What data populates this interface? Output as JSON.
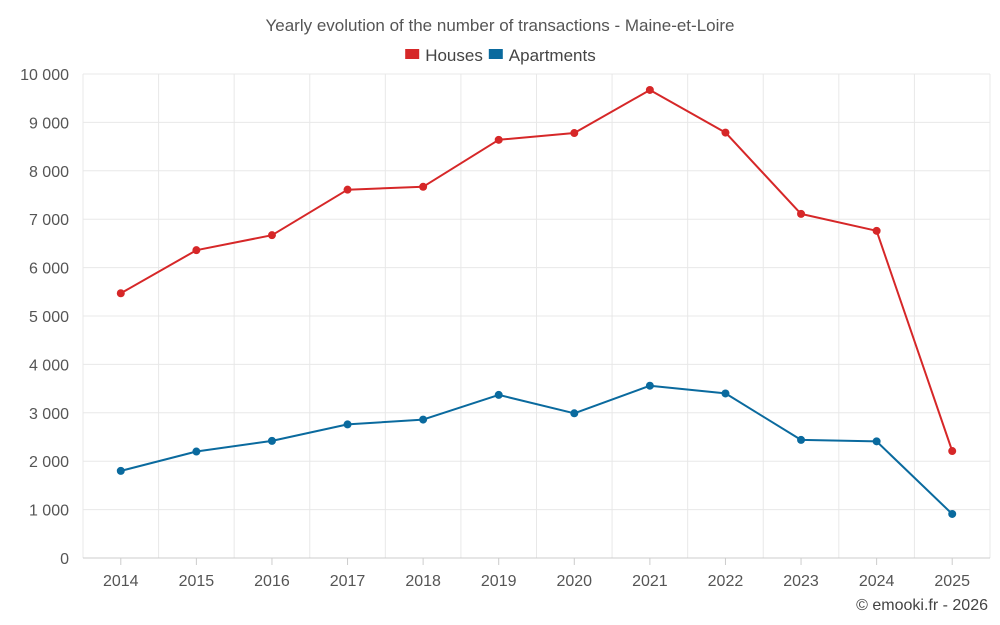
{
  "chart_data": {
    "type": "line",
    "title": "Yearly evolution of the number of transactions - Maine-et-Loire",
    "categories": [
      "2014",
      "2015",
      "2016",
      "2017",
      "2018",
      "2019",
      "2020",
      "2021",
      "2022",
      "2023",
      "2024",
      "2025"
    ],
    "series": [
      {
        "name": "Houses",
        "color": "#d62728",
        "values": [
          5470,
          6360,
          6670,
          7610,
          7670,
          8640,
          8780,
          9670,
          8790,
          7110,
          6760,
          2210
        ]
      },
      {
        "name": "Apartments",
        "color": "#0a6a9e",
        "values": [
          1800,
          2200,
          2420,
          2760,
          2860,
          3370,
          2990,
          3560,
          3400,
          2440,
          2410,
          910
        ]
      }
    ],
    "ylim": [
      0,
      10000
    ],
    "yticks": [
      0,
      1000,
      2000,
      3000,
      4000,
      5000,
      6000,
      7000,
      8000,
      9000,
      10000
    ],
    "ytick_labels": [
      "0",
      "1 000",
      "2 000",
      "3 000",
      "4 000",
      "5 000",
      "6 000",
      "7 000",
      "8 000",
      "9 000",
      "10 000"
    ],
    "legend_position": "top-center",
    "grid": true,
    "credit": "© emooki.fr - 2026"
  }
}
